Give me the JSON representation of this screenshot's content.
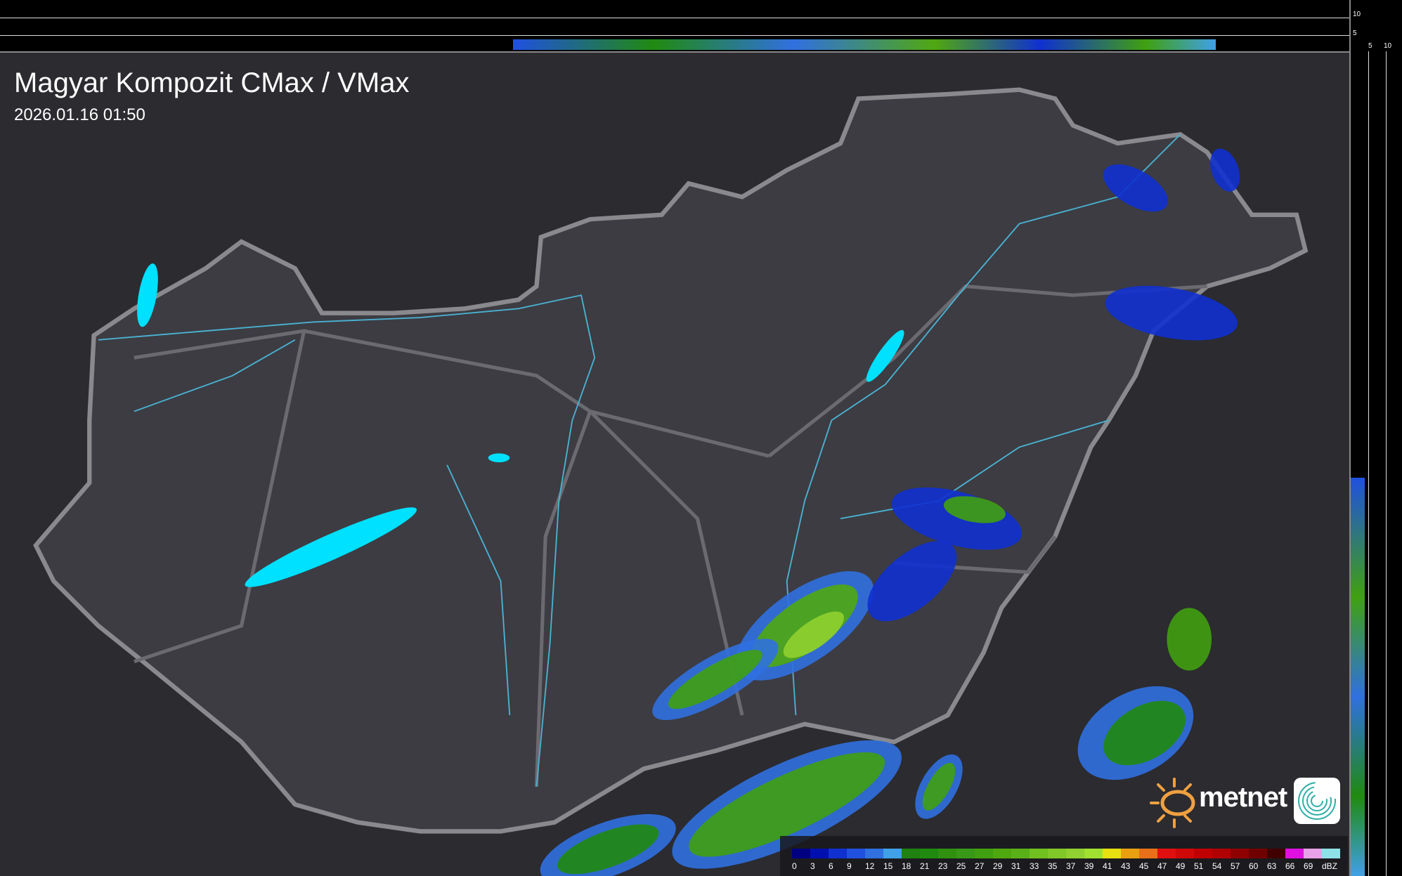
{
  "header": {
    "title": "Magyar Kompozit CMax / VMax",
    "timestamp": "2026.01.16 01:50"
  },
  "profile_axes": {
    "top_ticks": [
      "10",
      "5"
    ],
    "right_ticks": [
      "5",
      "10"
    ]
  },
  "legend": {
    "unit": "dBZ",
    "labels": [
      "0",
      "3",
      "6",
      "9",
      "12",
      "15",
      "18",
      "21",
      "23",
      "25",
      "27",
      "29",
      "31",
      "33",
      "35",
      "37",
      "39",
      "41",
      "43",
      "45",
      "47",
      "49",
      "51",
      "54",
      "57",
      "60",
      "63",
      "66",
      "69"
    ],
    "colors": [
      "#000080",
      "#0010b0",
      "#1030d0",
      "#2050e0",
      "#3070e0",
      "#40a0e8",
      "#208010",
      "#208a10",
      "#309010",
      "#389818",
      "#40a010",
      "#50a810",
      "#5ab018",
      "#70c020",
      "#80c828",
      "#90d030",
      "#a0e030",
      "#e8e010",
      "#e8a010",
      "#e87018",
      "#e01010",
      "#d00808",
      "#c00000",
      "#b00000",
      "#900000",
      "#700000",
      "#400000",
      "#e010e0",
      "#e8a0e8",
      "#90e0e8"
    ]
  },
  "brand": {
    "name": "metnet",
    "sun_color": "#f0a040",
    "icon": "spiral-logo-icon"
  },
  "colors": {
    "water": "#00e0ff",
    "rivers": "#4ab0d0",
    "border": "#8a8a8e",
    "background": "#2a2a2e"
  }
}
